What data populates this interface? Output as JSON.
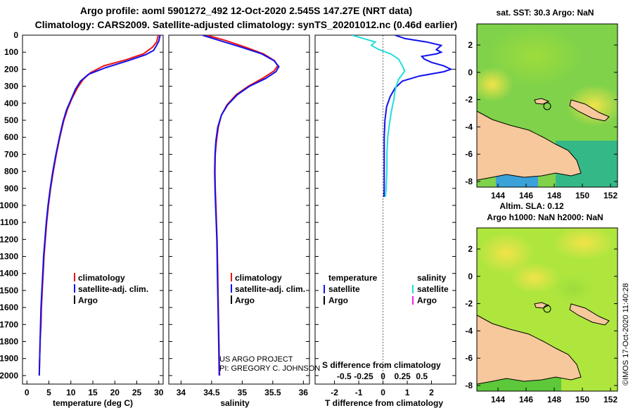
{
  "header": {
    "title_line1": "Argo profile: aoml 5901272_492 12-Oct-2020 2.545S 147.27E (NRT data)",
    "title_line2": "Climatology: CARS2009. Satellite-adjusted climatology: synTS_20201012.nc (0.46d earlier)"
  },
  "depth_ticks": [
    "0",
    "100",
    "200",
    "300",
    "400",
    "500",
    "600",
    "700",
    "800",
    "900",
    "1000",
    "1100",
    "1200",
    "1300",
    "1400",
    "1500",
    "1600",
    "1700",
    "1800",
    "1900",
    "2000"
  ],
  "colors": {
    "climatology": "#ee1111",
    "satellite": "#1111ee",
    "argo": "#000000",
    "sal_satellite": "#22dddd",
    "sal_argo": "#ee22ee",
    "land": "#f7c89b"
  },
  "chart_data": [
    {
      "type": "line",
      "id": "temperature",
      "xlabel": "temperature (deg C)",
      "xlim": [
        -1,
        31
      ],
      "ylim": [
        2050,
        0
      ],
      "xticks": [
        0,
        5,
        10,
        15,
        20,
        25,
        30
      ],
      "xticklabels": [
        "0",
        "5",
        "10",
        "15",
        "20",
        "25",
        "30"
      ],
      "legend": {
        "climatology": "climatology",
        "satellite": "satellite-adj. clim.",
        "argo": "Argo"
      },
      "series": [
        {
          "name": "climatology",
          "color": "#ee1111",
          "points": [
            [
              29.9,
              0
            ],
            [
              29.5,
              40
            ],
            [
              28.6,
              70
            ],
            [
              26.5,
              110
            ],
            [
              22.5,
              145
            ],
            [
              17.5,
              180
            ],
            [
              14.5,
              220
            ],
            [
              12.8,
              260
            ],
            [
              11.5,
              310
            ],
            [
              10.3,
              370
            ],
            [
              9.3,
              430
            ],
            [
              8.4,
              500
            ],
            [
              7.5,
              600
            ],
            [
              6.7,
              700
            ],
            [
              6.0,
              800
            ],
            [
              5.4,
              900
            ],
            [
              4.9,
              1000
            ],
            [
              4.5,
              1100
            ],
            [
              4.2,
              1200
            ],
            [
              3.9,
              1300
            ],
            [
              3.7,
              1400
            ],
            [
              3.5,
              1500
            ],
            [
              3.3,
              1600
            ],
            [
              3.2,
              1700
            ],
            [
              3.0,
              1800
            ],
            [
              2.9,
              1900
            ],
            [
              2.8,
              2000
            ]
          ]
        },
        {
          "name": "satellite",
          "color": "#1111ee",
          "points": [
            [
              30.3,
              0
            ],
            [
              30.0,
              35
            ],
            [
              29.5,
              60
            ],
            [
              28.8,
              90
            ],
            [
              27.0,
              115
            ],
            [
              23.0,
              150
            ],
            [
              18.0,
              190
            ],
            [
              14.0,
              230
            ],
            [
              12.2,
              270
            ],
            [
              11.0,
              320
            ],
            [
              10.0,
              380
            ],
            [
              9.0,
              440
            ],
            [
              8.2,
              510
            ],
            [
              7.4,
              600
            ],
            [
              6.6,
              700
            ],
            [
              5.9,
              800
            ],
            [
              5.3,
              900
            ],
            [
              4.8,
              1000
            ],
            [
              4.4,
              1100
            ],
            [
              4.1,
              1200
            ],
            [
              3.8,
              1300
            ],
            [
              3.6,
              1400
            ],
            [
              3.4,
              1500
            ],
            [
              3.2,
              1600
            ],
            [
              3.1,
              1700
            ],
            [
              3.0,
              1800
            ],
            [
              2.9,
              1900
            ],
            [
              2.8,
              2000
            ]
          ]
        }
      ]
    },
    {
      "type": "line",
      "id": "salinity",
      "xlabel": "salinity",
      "xlim": [
        33.8,
        36.1
      ],
      "ylim": [
        2050,
        0
      ],
      "xticks": [
        34,
        34.5,
        35,
        35.5,
        36
      ],
      "xticklabels": [
        "34",
        "34.5",
        "35",
        "35.5",
        "36"
      ],
      "legend": {
        "climatology": "climatology",
        "satellite": "satellite-adj. clim.",
        "argo": "Argo"
      },
      "credits": [
        "US ARGO PROJECT",
        "PI: GREGORY C. JOHNSON"
      ],
      "series": [
        {
          "name": "climatology",
          "color": "#ee1111",
          "points": [
            [
              34.42,
              0
            ],
            [
              34.72,
              30
            ],
            [
              35.05,
              70
            ],
            [
              35.35,
              110
            ],
            [
              35.53,
              150
            ],
            [
              35.58,
              180
            ],
            [
              35.52,
              210
            ],
            [
              35.35,
              250
            ],
            [
              35.1,
              300
            ],
            [
              34.9,
              350
            ],
            [
              34.75,
              410
            ],
            [
              34.66,
              470
            ],
            [
              34.61,
              540
            ],
            [
              34.58,
              620
            ],
            [
              34.56,
              700
            ],
            [
              34.555,
              800
            ],
            [
              34.56,
              900
            ],
            [
              34.57,
              1000
            ],
            [
              34.58,
              1100
            ],
            [
              34.59,
              1200
            ],
            [
              34.6,
              1400
            ],
            [
              34.61,
              1600
            ],
            [
              34.62,
              1800
            ],
            [
              34.63,
              2000
            ]
          ]
        },
        {
          "name": "satellite",
          "color": "#1111ee",
          "points": [
            [
              34.35,
              0
            ],
            [
              34.62,
              30
            ],
            [
              34.98,
              70
            ],
            [
              35.32,
              110
            ],
            [
              35.52,
              150
            ],
            [
              35.6,
              185
            ],
            [
              35.55,
              215
            ],
            [
              35.38,
              255
            ],
            [
              35.12,
              300
            ],
            [
              34.92,
              350
            ],
            [
              34.76,
              410
            ],
            [
              34.66,
              470
            ],
            [
              34.6,
              540
            ],
            [
              34.57,
              620
            ],
            [
              34.555,
              700
            ],
            [
              34.55,
              800
            ],
            [
              34.555,
              900
            ],
            [
              34.565,
              1000
            ],
            [
              34.575,
              1100
            ],
            [
              34.585,
              1200
            ],
            [
              34.595,
              1400
            ],
            [
              34.605,
              1600
            ],
            [
              34.615,
              1800
            ],
            [
              34.625,
              2000
            ]
          ]
        }
      ]
    },
    {
      "type": "line",
      "id": "difference",
      "xlabel": "T difference from climatology",
      "xlim": [
        -2.8,
        3.0
      ],
      "ylim": [
        2050,
        0
      ],
      "xticks": [
        -2,
        -1,
        0,
        1,
        2
      ],
      "xticklabels": [
        "-2",
        "-1",
        "0",
        "1",
        "2"
      ],
      "s_label": "S difference from climatology",
      "s_ticks": [
        -0.5,
        -0.25,
        0,
        0.25,
        0.5
      ],
      "s_ticklabels": [
        "-0.5",
        "-0.25",
        "0",
        "0.25",
        "0.5"
      ],
      "legend": {
        "temperature": "temperature",
        "salinity": "salinity",
        "t_satellite": "satellite",
        "t_argo": "Argo",
        "s_satellite": "satellite",
        "s_argo": "Argo"
      },
      "series": [
        {
          "name": "T satellite",
          "color": "#1111ee",
          "points": [
            [
              0.5,
              0
            ],
            [
              0.9,
              20
            ],
            [
              1.8,
              40
            ],
            [
              2.4,
              60
            ],
            [
              2.2,
              85
            ],
            [
              2.4,
              100
            ],
            [
              2.2,
              110
            ],
            [
              1.6,
              125
            ],
            [
              1.7,
              140
            ],
            [
              2.0,
              160
            ],
            [
              2.5,
              180
            ],
            [
              2.8,
              200
            ],
            [
              2.5,
              215
            ],
            [
              1.5,
              240
            ],
            [
              0.8,
              270
            ],
            [
              0.5,
              310
            ],
            [
              0.3,
              360
            ],
            [
              0.15,
              420
            ],
            [
              0.08,
              500
            ],
            [
              0.05,
              600
            ],
            [
              0.05,
              700
            ],
            [
              0.05,
              800
            ],
            [
              0.05,
              900
            ],
            [
              0.04,
              950
            ]
          ]
        },
        {
          "name": "S satellite",
          "color": "#22dddd",
          "points": [
            [
              -0.4,
              0
            ],
            [
              -0.25,
              20
            ],
            [
              -0.1,
              40
            ],
            [
              -0.15,
              60
            ],
            [
              -0.05,
              85
            ],
            [
              0.1,
              110
            ],
            [
              0.2,
              140
            ],
            [
              0.25,
              180
            ],
            [
              0.28,
              210
            ],
            [
              0.25,
              230
            ],
            [
              0.2,
              260
            ],
            [
              0.17,
              300
            ],
            [
              0.15,
              340
            ],
            [
              0.14,
              380
            ],
            [
              0.12,
              420
            ],
            [
              0.1,
              470
            ],
            [
              0.08,
              530
            ],
            [
              0.06,
              600
            ],
            [
              0.05,
              700
            ],
            [
              0.05,
              800
            ],
            [
              0.04,
              900
            ],
            [
              0.03,
              950
            ]
          ]
        }
      ]
    }
  ],
  "maps": {
    "top": {
      "title": "sat. SST: 30.3 Argo: NaN",
      "subtitle": "Altim. SLA: 0.12",
      "xticks": [
        "144",
        "146",
        "148",
        "150",
        "152"
      ],
      "yticks": [
        "2",
        "0",
        "-2",
        "-4",
        "-6",
        "-8"
      ]
    },
    "bottom": {
      "title": "Argo h1000: NaN h2000: NaN",
      "xticks": [
        "144",
        "146",
        "148",
        "150",
        "152"
      ],
      "yticks": [
        "2",
        "0",
        "-2",
        "-4",
        "-6",
        "-8"
      ]
    },
    "watermark": "©IMOS 17-Oct-2020 11:40:28"
  }
}
